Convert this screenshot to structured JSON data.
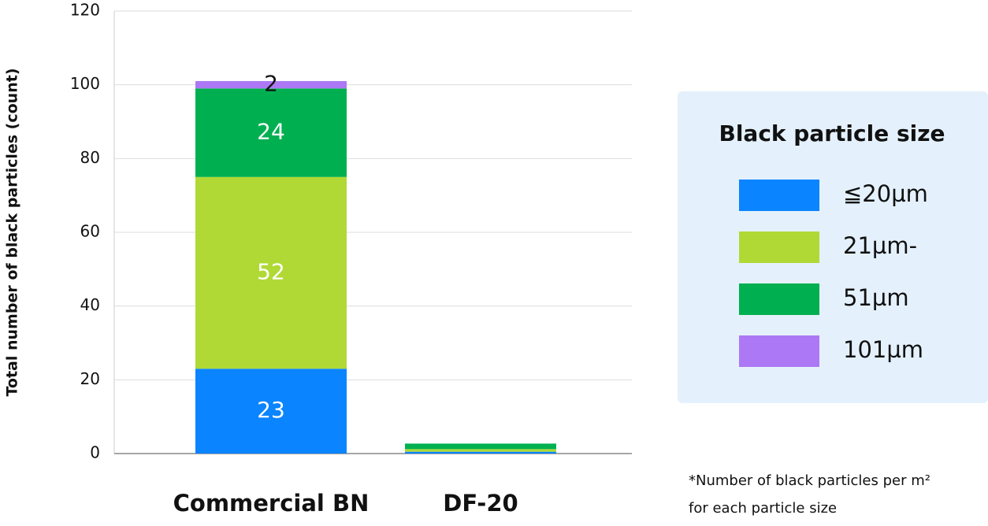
{
  "chart_data": {
    "type": "stacked_bar",
    "y_label": "Total number of black particles (count)",
    "categories": [
      "Commercial BN",
      "DF-20"
    ],
    "series": [
      {
        "name": "≦20µm",
        "color": "#0a84ff",
        "values": [
          23,
          0.5
        ],
        "value_labels": [
          "23",
          null
        ],
        "label_color": "#ffffff"
      },
      {
        "name": "21µm-",
        "color": "#b0d935",
        "values": [
          52,
          0.7
        ],
        "value_labels": [
          "52",
          null
        ],
        "label_color": "#ffffff"
      },
      {
        "name": "51µm",
        "color": "#00b050",
        "values": [
          24,
          1.5
        ],
        "value_labels": [
          "24",
          null
        ],
        "label_color": "#ffffff"
      },
      {
        "name": "101µm",
        "color": "#ad78f5",
        "values": [
          2,
          0
        ],
        "value_labels": [
          "2",
          null
        ],
        "label_color": "#111111"
      }
    ],
    "ylim": [
      0,
      120
    ],
    "yticks": [
      0,
      20,
      40,
      60,
      80,
      100,
      120
    ],
    "grid": true,
    "legend_title": "Black particle size",
    "legend_position": "right",
    "footnote": [
      "*Number of black particles per m²",
      "for each particle size"
    ]
  }
}
